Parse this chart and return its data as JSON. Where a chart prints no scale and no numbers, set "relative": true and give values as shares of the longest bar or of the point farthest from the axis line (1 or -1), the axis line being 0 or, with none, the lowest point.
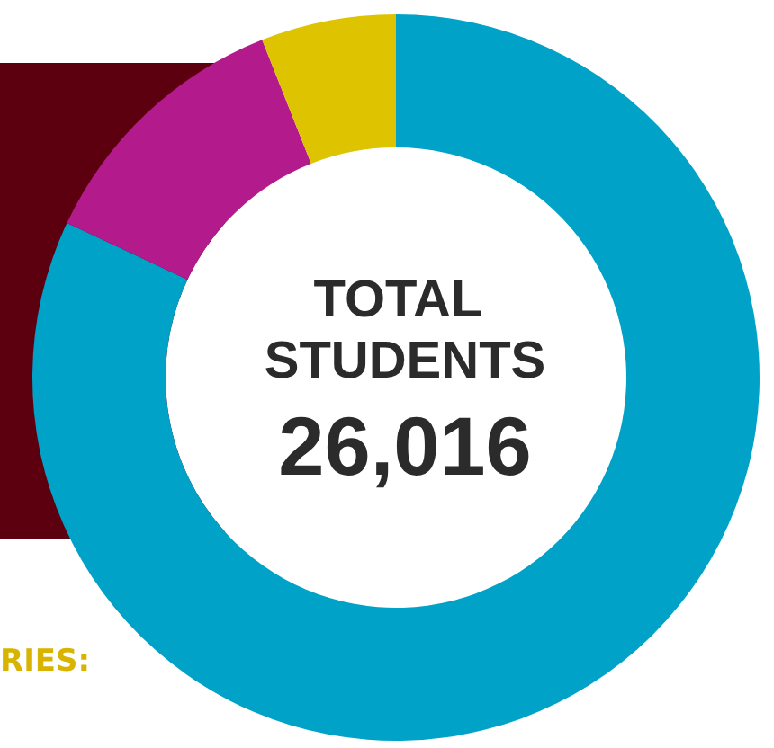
{
  "chart_data": {
    "type": "donut",
    "title": "TOTAL STUDENTS",
    "subtitle": "26,016",
    "relative": true,
    "categories": [
      null,
      null,
      null
    ],
    "values": [
      82,
      12,
      6
    ],
    "colors": [
      "#00a2c7",
      "#b31b8c",
      "#dec400"
    ],
    "annotations": [
      "RIES:"
    ]
  }
}
